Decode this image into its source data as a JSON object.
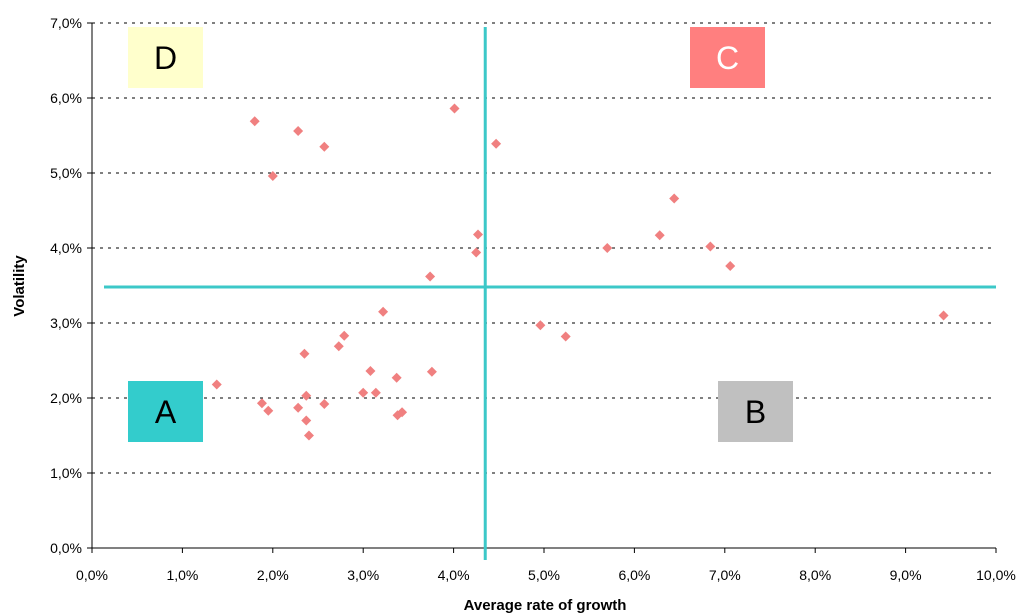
{
  "chart_data": {
    "type": "scatter",
    "title": "",
    "xlabel": "Average rate of growth",
    "ylabel": "Volatility",
    "xlim": [
      0,
      10
    ],
    "ylim": [
      0,
      7
    ],
    "x_ticks": [
      "0,0%",
      "1,0%",
      "2,0%",
      "3,0%",
      "4,0%",
      "5,0%",
      "6,0%",
      "7,0%",
      "8,0%",
      "9,0%",
      "10,0%"
    ],
    "y_ticks": [
      "0,0%",
      "1,0%",
      "2,0%",
      "3,0%",
      "4,0%",
      "5,0%",
      "6,0%",
      "7,0%"
    ],
    "grid": "horizontal dashed",
    "marker_color": "#f08080",
    "divider_color": "#3cc8c8",
    "dividers": {
      "x": 4.35,
      "y": 3.48
    },
    "quadrants": [
      {
        "label": "A",
        "color": "#33cccc",
        "text_color": "#000000"
      },
      {
        "label": "B",
        "color": "#c0c0c0",
        "text_color": "#000000"
      },
      {
        "label": "C",
        "color": "#ff7f7f",
        "text_color": "#ffffff"
      },
      {
        "label": "D",
        "color": "#ffffcc",
        "text_color": "#000000"
      }
    ],
    "points": [
      [
        1.38,
        2.18
      ],
      [
        1.88,
        1.93
      ],
      [
        1.95,
        1.83
      ],
      [
        2.28,
        1.87
      ],
      [
        2.35,
        2.59
      ],
      [
        2.37,
        2.03
      ],
      [
        2.37,
        1.7
      ],
      [
        2.4,
        1.5
      ],
      [
        2.57,
        1.92
      ],
      [
        2.73,
        2.69
      ],
      [
        2.79,
        2.83
      ],
      [
        3.0,
        2.07
      ],
      [
        3.08,
        2.36
      ],
      [
        3.14,
        2.07
      ],
      [
        3.22,
        3.15
      ],
      [
        3.37,
        2.27
      ],
      [
        3.38,
        1.77
      ],
      [
        3.43,
        1.81
      ],
      [
        3.76,
        2.35
      ],
      [
        3.74,
        3.62
      ],
      [
        1.8,
        5.69
      ],
      [
        2.0,
        4.96
      ],
      [
        2.28,
        5.56
      ],
      [
        2.57,
        5.35
      ],
      [
        4.01,
        5.86
      ],
      [
        4.25,
        3.94
      ],
      [
        4.27,
        4.18
      ],
      [
        4.47,
        5.39
      ],
      [
        4.96,
        2.97
      ],
      [
        5.24,
        2.82
      ],
      [
        5.7,
        4.0
      ],
      [
        6.28,
        4.17
      ],
      [
        6.44,
        4.66
      ],
      [
        6.84,
        4.02
      ],
      [
        7.06,
        3.76
      ],
      [
        9.42,
        3.1
      ]
    ]
  }
}
